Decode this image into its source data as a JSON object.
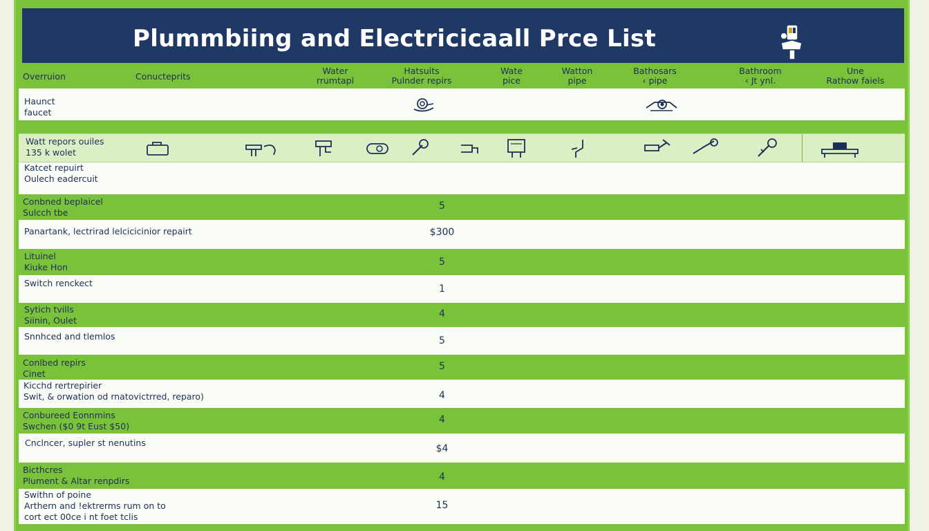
{
  "title": "Plummbiing and Electricicaall Prce List",
  "columns": [
    {
      "key": "c1",
      "lines": [
        "Overruion"
      ]
    },
    {
      "key": "c2",
      "lines": [
        "Conucteprits"
      ]
    },
    {
      "key": "c3",
      "lines": [
        "Water",
        "rrumtapl"
      ]
    },
    {
      "key": "c4",
      "lines": [
        "Hatsuits",
        "Pulnder repirs"
      ]
    },
    {
      "key": "c5",
      "lines": [
        "Wate",
        "pice"
      ]
    },
    {
      "key": "c6",
      "lines": [
        "Watton",
        "pipe"
      ]
    },
    {
      "key": "c7",
      "lines": [
        "Bathosars",
        "‹ pipe"
      ]
    },
    {
      "key": "c8",
      "lines": [
        "Bathroom",
        "‹ Jt ynl."
      ]
    },
    {
      "key": "c9",
      "lines": [
        "Une",
        "Rathow faiels"
      ]
    }
  ],
  "rows": [
    {
      "lines": [
        "Haunct",
        "faucet"
      ],
      "price": ""
    },
    {
      "lines": [
        "Watt repors ouiles",
        "135 k wolet"
      ],
      "price": ""
    },
    {
      "lines": [
        "Katcet repuirt",
        "Oulech eadercuit"
      ],
      "price": ""
    },
    {
      "lines": [
        "Conbned beplaicel",
        "Sulcch tbe"
      ],
      "price": "5"
    },
    {
      "lines": [
        "Panartank, lectrirad lelcicicinior repairt"
      ],
      "price": "$300"
    },
    {
      "lines": [
        "Lituinel",
        "Kiuke Hon"
      ],
      "price": "5"
    },
    {
      "lines": [
        "Switch renckect"
      ],
      "price": "1"
    },
    {
      "lines": [
        "Sytich tvills",
        "Siinin, Oulet"
      ],
      "price": "4"
    },
    {
      "lines": [
        "Snnhced and tlemlos"
      ],
      "price": "5"
    },
    {
      "lines": [
        "Conlbed repirs",
        "Cinet"
      ],
      "price": "5"
    },
    {
      "lines": [
        "Kicchd rertrepirier",
        "Swit, & orwation od rnatovictrred, reparo)"
      ],
      "price": "4"
    },
    {
      "lines": [
        "Conbureed Eonnmins",
        "Swchen ($0 9t Eust $50)"
      ],
      "price": "4"
    },
    {
      "lines": [
        "Cnclncer, supler st nenutins"
      ],
      "price": "$4"
    },
    {
      "lines": [
        "Bicthcres",
        "Plument & Altar renpdirs"
      ],
      "price": "4"
    },
    {
      "lines": [
        "Swithn of poine",
        "Arthern and !ektrerms rum on to",
        "cort ect 00ce i nt foet tclis"
      ],
      "price": "15"
    }
  ],
  "icons": [
    "toolbox-icon",
    "faucet-icon",
    "pipe-valve-icon",
    "pipe-fitting-icon",
    "wrench-icon",
    "tap-icon",
    "water-heater-icon",
    "drain-pipe-icon",
    "pipe-wrench-icon",
    "spray-icon",
    "plug-icon",
    "bathtub-icon",
    "snail-drain-icon",
    "shower-head-icon",
    "plumber-logo-icon"
  ],
  "colors": {
    "header": "#1f3864",
    "green": "#7ac23a",
    "row_white": "#fafcf6",
    "row_light": "#dcefc4",
    "text": "#1d2f57"
  }
}
